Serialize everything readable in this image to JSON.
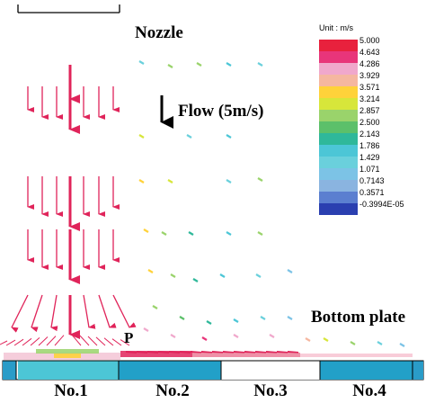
{
  "labels": {
    "nozzle": "Nozzle",
    "flow": "Flow (5m/s)",
    "bottom_plate": "Bottom plate",
    "point": "P"
  },
  "regions": [
    "No.1",
    "No.2",
    "No.3",
    "No.4"
  ],
  "legend": {
    "unit": "Unit : m/s",
    "levels": [
      {
        "value": "5.000",
        "color": "#e8213d"
      },
      {
        "value": "4.643",
        "color": "#e8357a"
      },
      {
        "value": "4.286",
        "color": "#f0a8cc"
      },
      {
        "value": "3.929",
        "color": "#f5b7a0"
      },
      {
        "value": "3.571",
        "color": "#ffd23a"
      },
      {
        "value": "3.214",
        "color": "#d7e63a"
      },
      {
        "value": "2.857",
        "color": "#9ad36b"
      },
      {
        "value": "2.500",
        "color": "#5cc06a"
      },
      {
        "value": "2.143",
        "color": "#2fb89a"
      },
      {
        "value": "1.786",
        "color": "#4cc6d6"
      },
      {
        "value": "1.429",
        "color": "#6ad0dc"
      },
      {
        "value": "1.071",
        "color": "#7cc3e6"
      },
      {
        "value": "0.7143",
        "color": "#8ab4e0"
      },
      {
        "value": "0.3571",
        "color": "#5b7fd0"
      },
      {
        "value": "-0.3994E-05",
        "color": "#2a3fb0"
      }
    ]
  }
}
